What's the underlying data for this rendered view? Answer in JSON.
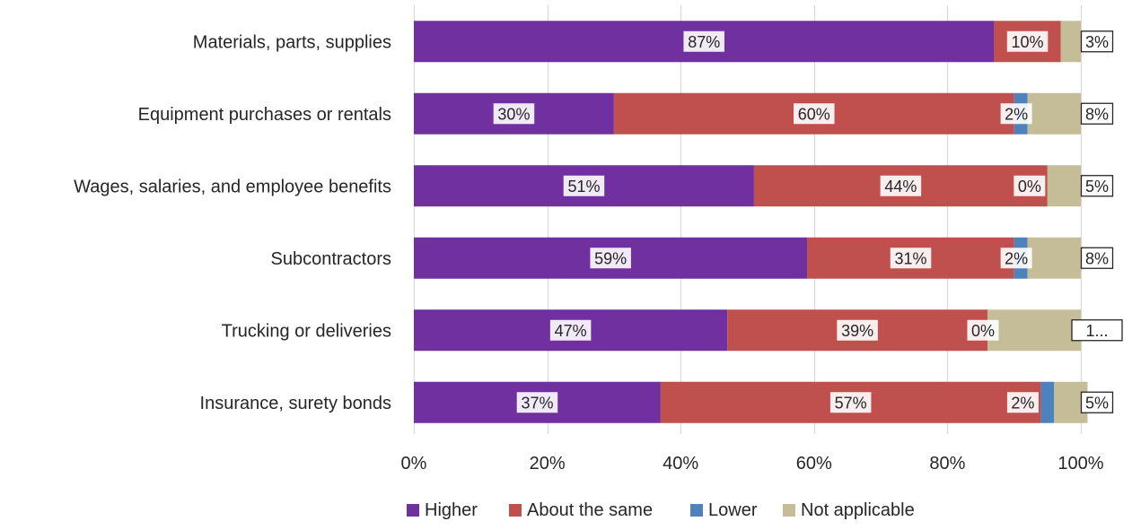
{
  "chart_data": {
    "type": "bar",
    "orientation": "horizontal",
    "stacked": true,
    "percent_stacked": true,
    "categories": [
      "Materials, parts, supplies",
      "Equipment purchases or rentals",
      "Wages, salaries, and employee benefits",
      "Subcontractors",
      "Trucking or deliveries",
      "Insurance, surety bonds"
    ],
    "series": [
      {
        "name": "Higher",
        "color": "#7030a0",
        "values": [
          87,
          30,
          51,
          59,
          47,
          37
        ],
        "labels": [
          "87%",
          "30%",
          "51%",
          "59%",
          "47%",
          "37%"
        ]
      },
      {
        "name": "About the same",
        "color": "#c0504d",
        "values": [
          10,
          60,
          44,
          31,
          39,
          57
        ],
        "labels": [
          "10%",
          "60%",
          "44%",
          "31%",
          "39%",
          "57%"
        ]
      },
      {
        "name": "Lower",
        "color": "#4f81bd",
        "values": [
          0,
          2,
          0,
          2,
          0,
          2
        ],
        "labels": [
          "",
          "2%",
          "0%",
          "2%",
          "0%",
          "2%"
        ]
      },
      {
        "name": "Not applicable",
        "color": "#c4bd97",
        "values": [
          3,
          8,
          5,
          8,
          14,
          5
        ],
        "labels": [
          "3%",
          "8%",
          "5%",
          "8%",
          "1...",
          "5%"
        ]
      }
    ],
    "xlim": [
      0,
      100
    ],
    "xticks": [
      "0%",
      "20%",
      "40%",
      "60%",
      "80%",
      "100%"
    ],
    "grid": "vertical",
    "legend": "bottom",
    "title": "",
    "xlabel": "",
    "ylabel": ""
  }
}
